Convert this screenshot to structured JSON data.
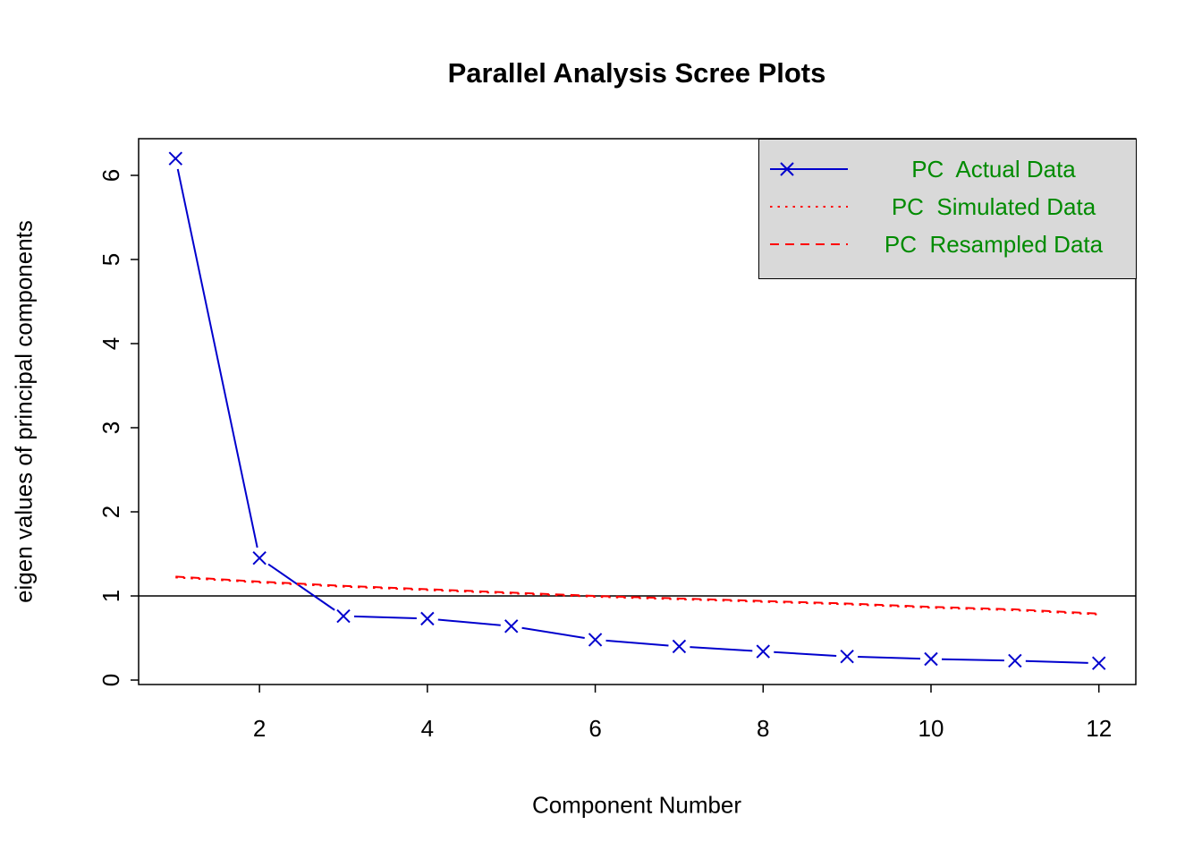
{
  "chart_data": {
    "type": "line",
    "title": "Parallel Analysis Scree Plots",
    "xlabel": "Component Number",
    "ylabel": "eigen values of principal components",
    "x": [
      1,
      2,
      3,
      4,
      5,
      6,
      7,
      8,
      9,
      10,
      11,
      12
    ],
    "xticks": [
      2,
      4,
      6,
      8,
      10,
      12
    ],
    "yticks": [
      0,
      1,
      2,
      3,
      4,
      5,
      6
    ],
    "xlim": [
      0.56,
      12.44
    ],
    "ylim": [
      -0.053,
      6.436
    ],
    "grid": false,
    "reference_line_y": 1,
    "series": [
      {
        "name": "PC  Actual Data",
        "color": "#0000CD",
        "style": "solid-b",
        "marker": "x",
        "values": [
          6.2,
          1.45,
          0.76,
          0.73,
          0.64,
          0.48,
          0.4,
          0.34,
          0.28,
          0.25,
          0.23,
          0.2
        ]
      },
      {
        "name": "PC  Simulated Data",
        "color": "#FF0000",
        "style": "dotted",
        "values": [
          1.22,
          1.16,
          1.11,
          1.07,
          1.03,
          0.99,
          0.96,
          0.93,
          0.9,
          0.86,
          0.83,
          0.78
        ]
      },
      {
        "name": "PC  Resampled Data",
        "color": "#FF0000",
        "style": "dashed",
        "values": [
          1.23,
          1.17,
          1.12,
          1.08,
          1.04,
          1.0,
          0.97,
          0.94,
          0.91,
          0.87,
          0.84,
          0.79
        ]
      }
    ],
    "legend": {
      "position": "top-right",
      "background": "#D9D9D9",
      "text_color": "#008B00",
      "entries": [
        "PC  Actual Data",
        "PC  Simulated Data",
        "PC  Resampled Data"
      ]
    }
  }
}
